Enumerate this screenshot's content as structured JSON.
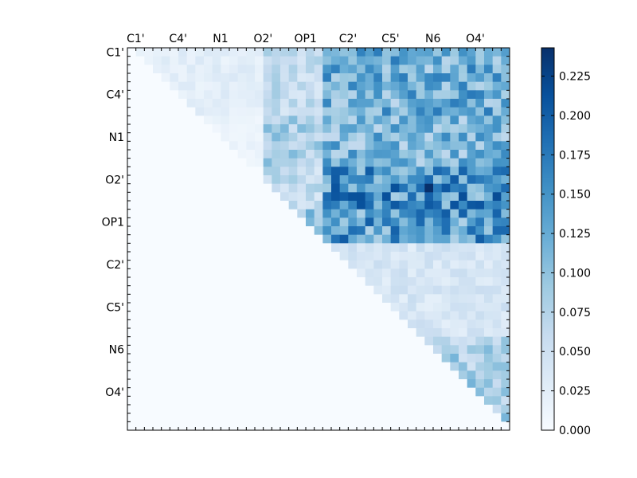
{
  "chart_data": {
    "type": "heatmap",
    "title": "",
    "xlabel": "",
    "ylabel": "",
    "n": 45,
    "tick_labels": [
      "C1'",
      "C4'",
      "N1",
      "O2'",
      "OP1",
      "C2'",
      "C5'",
      "N6",
      "O4'"
    ],
    "tick_positions": [
      0.5,
      5.5,
      10.5,
      15.5,
      20.5,
      25.5,
      30.5,
      35.5,
      40.5
    ],
    "x_tick_placement": "top",
    "colormap": "Blues",
    "colorbar": {
      "min": 0.0,
      "max": 0.243,
      "ticks": [
        0.0,
        0.025,
        0.05,
        0.075,
        0.1,
        0.125,
        0.15,
        0.175,
        0.2,
        0.225
      ],
      "tick_labels": [
        "0.000",
        "0.025",
        "0.050",
        "0.075",
        "0.100",
        "0.125",
        "0.150",
        "0.175",
        "0.200",
        "0.225"
      ]
    },
    "matrix_structure": "upper-triangular; values below the diagonal are zero",
    "block_means": {
      "rows": [
        "C1'-block",
        "N1-block",
        "O2'-block",
        "OP1-block",
        "C2'-block",
        "N6-block"
      ],
      "cols_0_to_15": [
        0.025,
        0.015,
        0.0,
        0.0,
        0.0,
        0.0
      ],
      "cols_16_to_22": [
        0.06,
        0.08,
        0.06,
        0.1,
        0.0,
        0.0
      ],
      "cols_23_to_44": [
        0.12,
        0.11,
        0.15,
        0.14,
        0.04,
        0.08
      ]
    },
    "peak": {
      "row": 16,
      "col": 35,
      "value": 0.243
    }
  }
}
